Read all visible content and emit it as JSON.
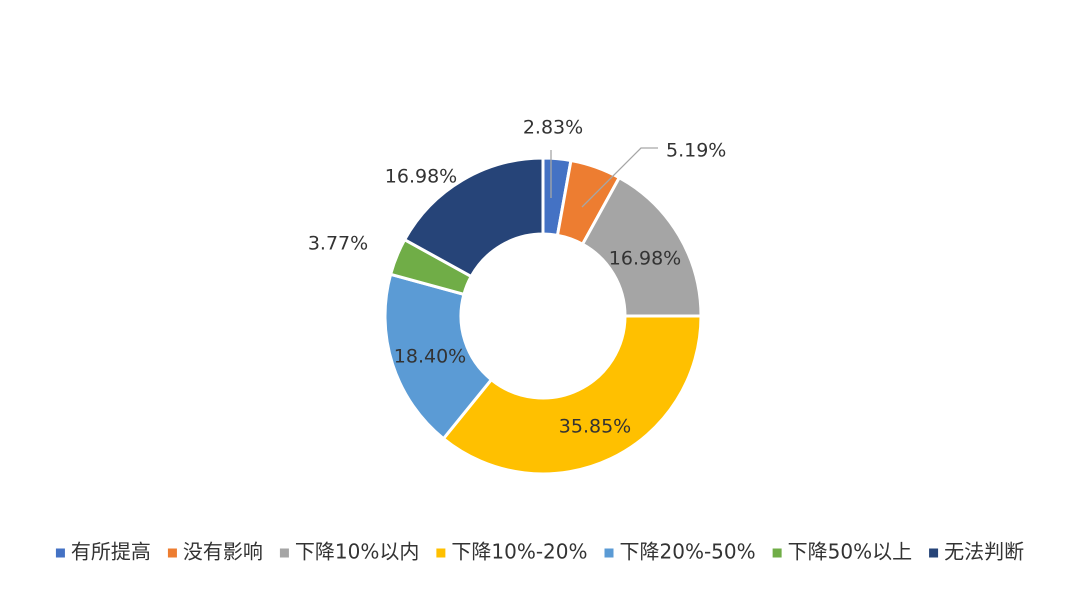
{
  "chart_data": {
    "type": "pie",
    "variant": "donut",
    "title": "",
    "unit": "%",
    "categories": [
      "有所提高",
      "没有影响",
      "下降10%以内",
      "下降10%-20%",
      "下降20%-50%",
      "下降50%以上",
      "无法判断"
    ],
    "values": [
      2.83,
      5.19,
      16.98,
      35.85,
      18.4,
      3.77,
      16.98
    ],
    "labels": [
      "2.83%",
      "5.19%",
      "16.98%",
      "35.85%",
      "18.40%",
      "3.77%",
      "16.98%"
    ],
    "colors": [
      "#4472C4",
      "#ED7D31",
      "#A5A5A5",
      "#FFC000",
      "#5B9BD5",
      "#70AD47",
      "#264478"
    ],
    "legend_position": "bottom",
    "slice_border_color": "#ffffff"
  }
}
